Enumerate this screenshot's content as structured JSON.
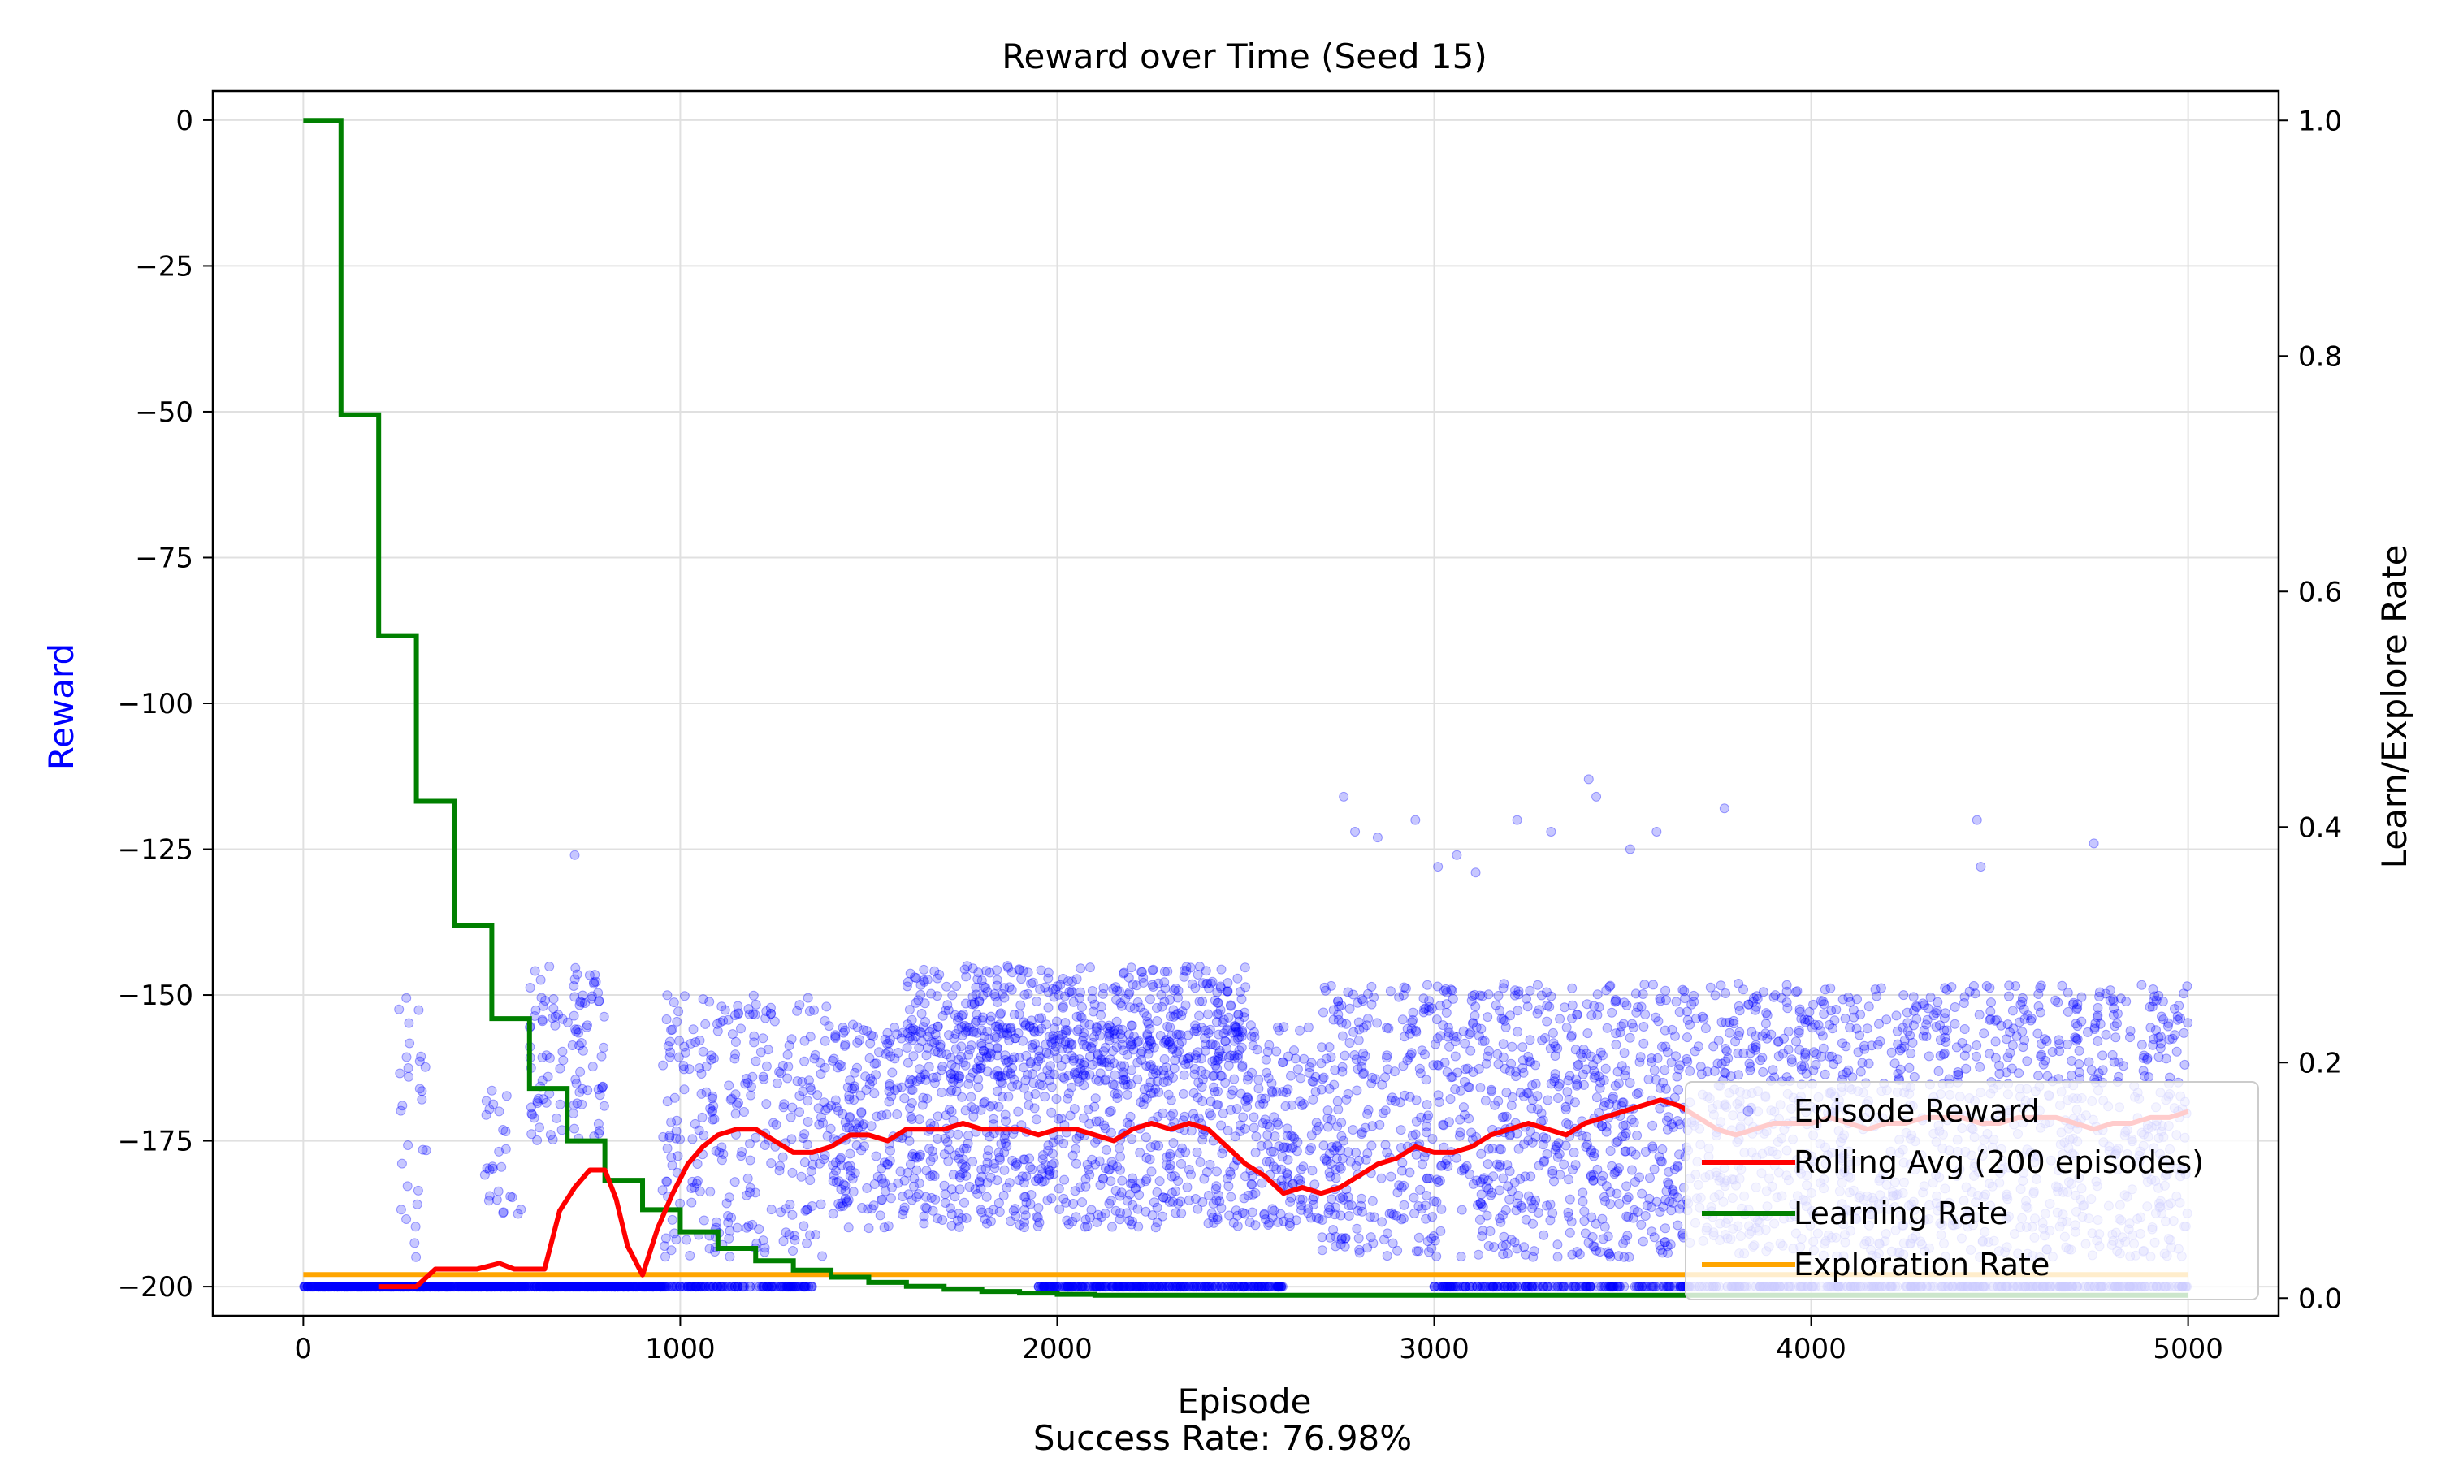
{
  "chart_data": {
    "type": "line",
    "title": "Reward over Time (Seed 15)",
    "xlabel": "Episode",
    "ylabel": "Reward",
    "y2label": "Learn/Explore Rate",
    "footer": "Success Rate: 76.98%",
    "xlim": [
      -240,
      5240
    ],
    "ylim": [
      -205,
      5
    ],
    "y2lim": [
      -0.015,
      1.025
    ],
    "xticks": [
      0,
      1000,
      2000,
      3000,
      4000,
      5000
    ],
    "yticks": [
      0,
      -25,
      -50,
      -75,
      -100,
      -125,
      -150,
      -175,
      -200
    ],
    "y2ticks": [
      0.0,
      0.2,
      0.4,
      0.6,
      0.8,
      1.0
    ],
    "grid": true,
    "legend_position": "lower-right",
    "colors": {
      "episode_reward": "#0000ff",
      "ylabel": "#0000ff",
      "rolling_avg": "#ff0000",
      "learning_rate": "#008000",
      "exploration_rate": "#ffa500",
      "grid": "#e0e0e0"
    },
    "series": [
      {
        "name": "Episode Reward",
        "kind": "scatter",
        "axis": "left",
        "color": "#0000ff",
        "bands": [
          {
            "x": [
              0,
              950
            ],
            "y": [
              -200,
              -200
            ],
            "density": 1.0
          },
          {
            "x": [
              250,
              330
            ],
            "y": [
              -195,
              -145
            ],
            "density": 0.4
          },
          {
            "x": [
              480,
              580
            ],
            "y": [
              -190,
              -165
            ],
            "density": 0.3
          },
          {
            "x": [
              600,
              800
            ],
            "y": [
              -175,
              -145
            ],
            "density": 0.6
          },
          {
            "x": [
              950,
              1350
            ],
            "y": [
              -200,
              -200
            ],
            "density": 0.4
          },
          {
            "x": [
              950,
              1400
            ],
            "y": [
              -195,
              -150
            ],
            "density": 0.7
          },
          {
            "x": [
              1400,
              2700
            ],
            "y": [
              -190,
              -155
            ],
            "density": 0.9
          },
          {
            "x": [
              1600,
              2500
            ],
            "y": [
              -165,
              -145
            ],
            "density": 0.6
          },
          {
            "x": [
              1950,
              2600
            ],
            "y": [
              -200,
              -200
            ],
            "density": 0.5
          },
          {
            "x": [
              2700,
              5000
            ],
            "y": [
              -195,
              -148
            ],
            "density": 1.0
          },
          {
            "x": [
              3000,
              5000
            ],
            "y": [
              -200,
              -200
            ],
            "density": 0.3
          }
        ],
        "outliers": [
          {
            "x": 720,
            "y": -126
          },
          {
            "x": 2760,
            "y": -116
          },
          {
            "x": 2790,
            "y": -122
          },
          {
            "x": 2850,
            "y": -123
          },
          {
            "x": 2950,
            "y": -120
          },
          {
            "x": 3010,
            "y": -128
          },
          {
            "x": 3060,
            "y": -126
          },
          {
            "x": 3110,
            "y": -129
          },
          {
            "x": 3220,
            "y": -120
          },
          {
            "x": 3310,
            "y": -122
          },
          {
            "x": 3410,
            "y": -113
          },
          {
            "x": 3430,
            "y": -116
          },
          {
            "x": 3520,
            "y": -125
          },
          {
            "x": 3590,
            "y": -122
          },
          {
            "x": 3770,
            "y": -118
          },
          {
            "x": 4440,
            "y": -120
          },
          {
            "x": 4450,
            "y": -128
          },
          {
            "x": 4750,
            "y": -124
          }
        ]
      },
      {
        "name": "Rolling Avg (200 episodes)",
        "kind": "line",
        "axis": "left",
        "color": "#ff0000",
        "x": [
          199,
          300,
          350,
          400,
          460,
          520,
          560,
          600,
          640,
          680,
          720,
          760,
          800,
          830,
          860,
          900,
          940,
          980,
          1020,
          1060,
          1100,
          1150,
          1200,
          1250,
          1300,
          1350,
          1400,
          1450,
          1500,
          1550,
          1600,
          1650,
          1700,
          1750,
          1800,
          1850,
          1900,
          1950,
          2000,
          2050,
          2100,
          2150,
          2200,
          2250,
          2300,
          2350,
          2400,
          2450,
          2500,
          2550,
          2600,
          2650,
          2700,
          2750,
          2800,
          2850,
          2900,
          2950,
          3000,
          3050,
          3100,
          3150,
          3200,
          3250,
          3300,
          3350,
          3400,
          3450,
          3500,
          3550,
          3600,
          3650,
          3700,
          3750,
          3800,
          3850,
          3900,
          3950,
          4000,
          4050,
          4100,
          4150,
          4200,
          4250,
          4300,
          4350,
          4400,
          4450,
          4500,
          4550,
          4600,
          4650,
          4700,
          4750,
          4800,
          4850,
          4900,
          4950,
          5000
        ],
        "y": [
          -200,
          -200,
          -197,
          -197,
          -197,
          -196,
          -197,
          -197,
          -197,
          -187,
          -183,
          -180,
          -180,
          -185,
          -193,
          -198,
          -190,
          -184,
          -179,
          -176,
          -174,
          -173,
          -173,
          -175,
          -177,
          -177,
          -176,
          -174,
          -174,
          -175,
          -173,
          -173,
          -173,
          -172,
          -173,
          -173,
          -173,
          -174,
          -173,
          -173,
          -174,
          -175,
          -173,
          -172,
          -173,
          -172,
          -173,
          -176,
          -179,
          -181,
          -184,
          -183,
          -184,
          -183,
          -181,
          -179,
          -178,
          -176,
          -177,
          -177,
          -176,
          -174,
          -173,
          -172,
          -173,
          -174,
          -172,
          -171,
          -170,
          -169,
          -168,
          -169,
          -171,
          -173,
          -174,
          -173,
          -172,
          -172,
          -172,
          -171,
          -172,
          -173,
          -172,
          -172,
          -171,
          -171,
          -171,
          -172,
          -172,
          -171,
          -171,
          -171,
          -172,
          -173,
          -172,
          -172,
          -171,
          -171,
          -170
        ]
      },
      {
        "name": "Learning Rate",
        "kind": "step",
        "axis": "right",
        "color": "#008000",
        "x": [
          0,
          100,
          200,
          300,
          400,
          500,
          600,
          700,
          800,
          900,
          1000,
          1100,
          1200,
          1300,
          1400,
          1500,
          1600,
          1700,
          1800,
          1900,
          2000,
          2100,
          5000
        ],
        "y": [
          1.0,
          0.75,
          0.5625,
          0.4219,
          0.3164,
          0.2373,
          0.178,
          0.1335,
          0.1001,
          0.0751,
          0.0563,
          0.0422,
          0.0317,
          0.0238,
          0.0178,
          0.0134,
          0.01,
          0.0075,
          0.0056,
          0.0042,
          0.0032,
          0.0024,
          0.0024
        ]
      },
      {
        "name": "Exploration Rate",
        "kind": "line",
        "axis": "right",
        "color": "#ffa500",
        "x": [
          0,
          5000
        ],
        "y": [
          0.02,
          0.02
        ]
      }
    ]
  }
}
